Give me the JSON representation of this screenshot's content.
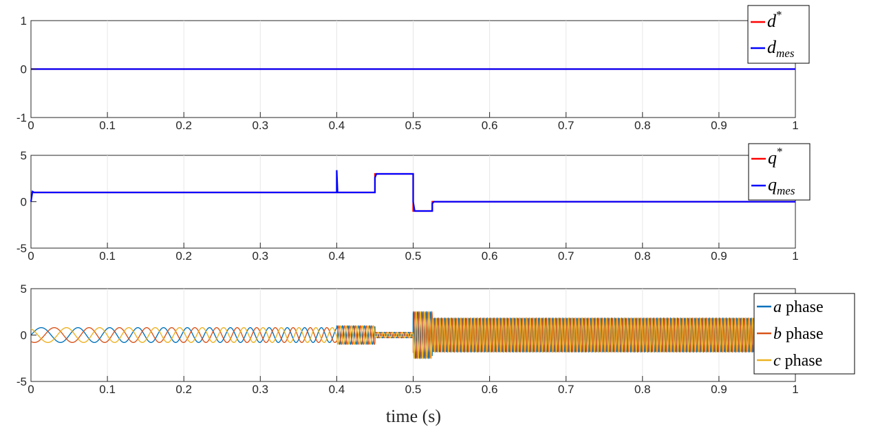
{
  "chart_data": [
    {
      "type": "line",
      "xlim": [
        0,
        1
      ],
      "ylim": [
        -1,
        1
      ],
      "x_ticks": [
        "0",
        "0.1",
        "0.2",
        "0.3",
        "0.4",
        "0.5",
        "0.6",
        "0.7",
        "0.8",
        "0.9",
        "1"
      ],
      "y_ticks": [
        "-1",
        "0",
        "1"
      ],
      "grid": "vertical",
      "legend_position": "top-right",
      "series": [
        {
          "name": "d*",
          "color": "#ff0000",
          "x": [
            0,
            1
          ],
          "y": [
            0,
            0
          ]
        },
        {
          "name": "d_mes",
          "color": "#0000ff",
          "x": [
            0,
            1
          ],
          "y": [
            0,
            0
          ]
        }
      ]
    },
    {
      "type": "line",
      "xlim": [
        0,
        1
      ],
      "ylim": [
        -5,
        5
      ],
      "x_ticks": [
        "0",
        "0.1",
        "0.2",
        "0.3",
        "0.4",
        "0.5",
        "0.6",
        "0.7",
        "0.8",
        "0.9",
        "1"
      ],
      "y_ticks": [
        "-5",
        "0",
        "5"
      ],
      "grid": "vertical",
      "legend_position": "top-right",
      "series": [
        {
          "name": "q*",
          "color": "#ff0000",
          "x": [
            0,
            0.45,
            0.45,
            0.5,
            0.5,
            0.525,
            0.525,
            1
          ],
          "y": [
            1,
            1,
            3,
            3,
            -1,
            -1,
            0,
            0
          ]
        },
        {
          "name": "q_mes",
          "color": "#0000ff",
          "x": [
            0,
            0.002,
            0.004,
            0.02,
            0.02,
            0.4,
            0.4,
            0.401,
            0.401,
            0.45,
            0.45,
            0.452,
            0.5,
            0.5,
            0.502,
            0.525,
            0.525,
            0.527,
            1
          ],
          "y": [
            0,
            1.1,
            1.0,
            1.0,
            1.0,
            1.0,
            3.4,
            1.3,
            1.0,
            1.0,
            2.6,
            3.0,
            3.0,
            0.0,
            -1.0,
            -1.0,
            -0.2,
            0.0,
            0.0
          ]
        }
      ]
    },
    {
      "type": "line",
      "xlim": [
        0,
        1
      ],
      "ylim": [
        -5,
        5
      ],
      "x_ticks": [
        "0",
        "0.1",
        "0.2",
        "0.3",
        "0.4",
        "0.5",
        "0.6",
        "0.7",
        "0.8",
        "0.9",
        "1"
      ],
      "y_ticks": [
        "-5",
        "0",
        "5"
      ],
      "grid": "vertical",
      "legend_position": "right",
      "description": "three-phase currents; ~0.8 amplitude sinusoids with increasing frequency 0-0.4 s, 1.0 at 0.4-0.45 s, 0.3 at 0.45-0.5 s, 2.5 at 0.5-0.525 s, 1.8 dense oscillation 0.525-0.95 s",
      "segments": [
        {
          "t0": 0,
          "t1": 0.4,
          "amplitude": 0.8
        },
        {
          "t0": 0.4,
          "t1": 0.45,
          "amplitude": 1.0
        },
        {
          "t0": 0.45,
          "t1": 0.5,
          "amplitude": 0.3
        },
        {
          "t0": 0.5,
          "t1": 0.525,
          "amplitude": 2.5
        },
        {
          "t0": 0.525,
          "t1": 0.95,
          "amplitude": 1.8
        }
      ],
      "series": [
        {
          "name": "a phase",
          "color": "#0072bd",
          "phase_deg": 0
        },
        {
          "name": "b phase",
          "color": "#d95319",
          "phase_deg": -120
        },
        {
          "name": "c phase",
          "color": "#edb120",
          "phase_deg": 120
        }
      ],
      "xlabel": "time (s)"
    }
  ]
}
